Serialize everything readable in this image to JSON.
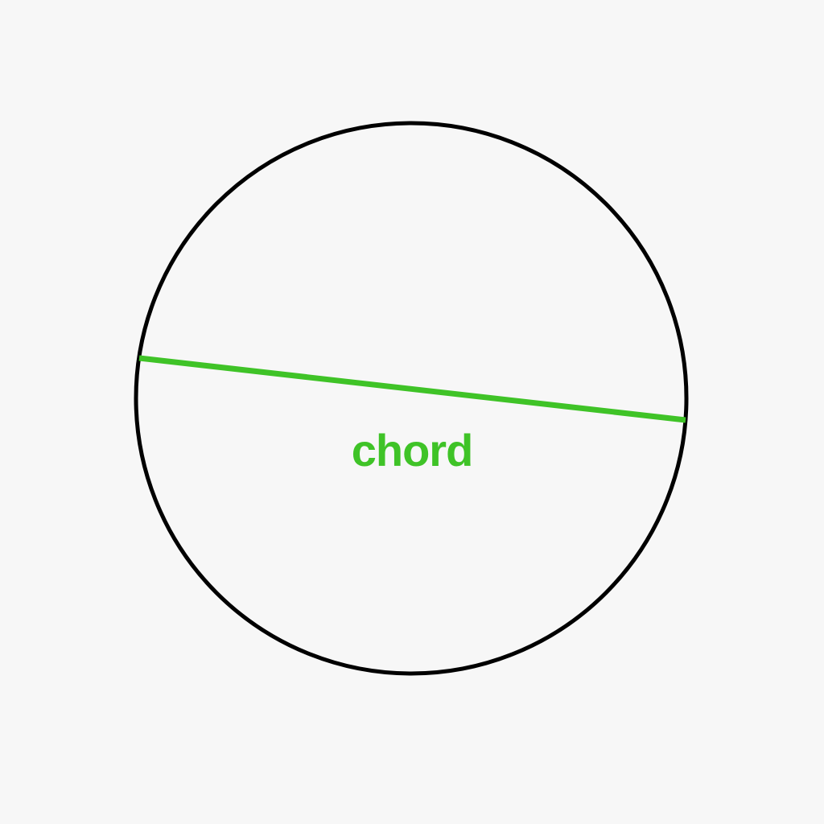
{
  "diagram": {
    "background_color": "#f7f7f7",
    "circle": {
      "stroke_color": "#000000"
    },
    "chord": {
      "label": "chord",
      "color": "#3fc327"
    }
  }
}
